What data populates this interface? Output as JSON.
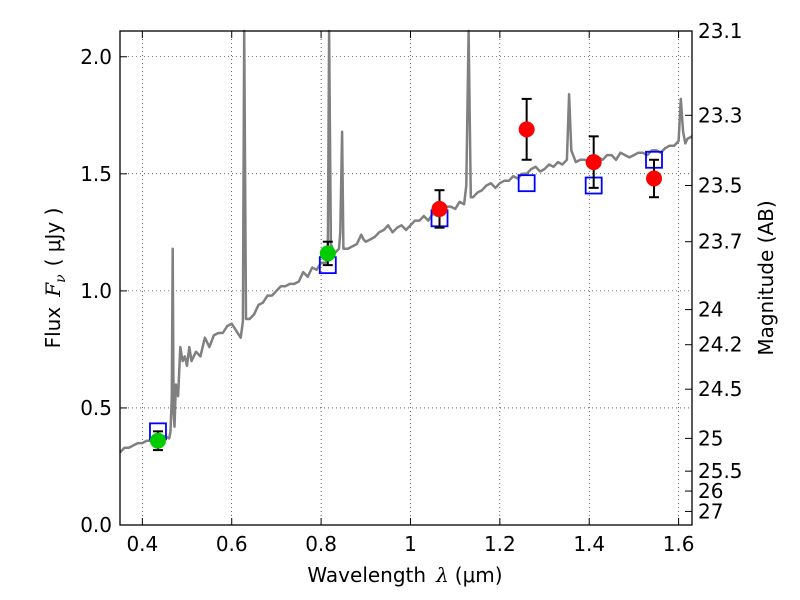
{
  "chart_data": {
    "type": "scatter",
    "title": "",
    "xlabel": "Wavelength",
    "xlabel_symbol": "λ",
    "xlabel_unit": "(μm)",
    "ylabel": "Flux",
    "ylabel_symbol": "F",
    "ylabel_sub": "ν",
    "ylabel_unit": "( μJy )",
    "y2label": "Magnitude (AB)",
    "xlim": [
      0.35,
      1.63
    ],
    "ylim": [
      0.0,
      2.11
    ],
    "grid": true,
    "grid_style": "dotted",
    "xticks": [
      0.4,
      0.6,
      0.8,
      1.0,
      1.2,
      1.4,
      1.6
    ],
    "xtick_labels": [
      "0.4",
      "0.6",
      "0.8",
      "1",
      "1.2",
      "1.4",
      "1.6"
    ],
    "yticks": [
      0.0,
      0.5,
      1.0,
      1.5,
      2.0
    ],
    "ytick_labels": [
      "0.0",
      "0.5",
      "1.0",
      "1.5",
      "2.0"
    ],
    "y2_ticks": [
      {
        "label": "23.1",
        "flux": 2.11
      },
      {
        "label": "23.3",
        "flux": 1.75
      },
      {
        "label": "23.5",
        "flux": 1.45
      },
      {
        "label": "23.7",
        "flux": 1.21
      },
      {
        "label": "24",
        "flux": 0.92
      },
      {
        "label": "24.2",
        "flux": 0.77
      },
      {
        "label": "24.5",
        "flux": 0.58
      },
      {
        "label": "25",
        "flux": 0.37
      },
      {
        "label": "25.5",
        "flux": 0.23
      },
      {
        "label": "26",
        "flux": 0.145
      },
      {
        "label": "27",
        "flux": 0.058
      }
    ],
    "series": [
      {
        "type": "line",
        "color": "#808080",
        "x": [
          0.35,
          0.36,
          0.37,
          0.38,
          0.39,
          0.4,
          0.41,
          0.42,
          0.43,
          0.44,
          0.45,
          0.46,
          0.463,
          0.466,
          0.468,
          0.47,
          0.472,
          0.475,
          0.48,
          0.485,
          0.49,
          0.495,
          0.5,
          0.505,
          0.51,
          0.52,
          0.53,
          0.54,
          0.55,
          0.56,
          0.57,
          0.58,
          0.59,
          0.6,
          0.61,
          0.62,
          0.625,
          0.628,
          0.632,
          0.64,
          0.65,
          0.66,
          0.67,
          0.68,
          0.69,
          0.7,
          0.71,
          0.72,
          0.73,
          0.74,
          0.75,
          0.76,
          0.77,
          0.78,
          0.79,
          0.8,
          0.81,
          0.815,
          0.818,
          0.822,
          0.83,
          0.84,
          0.843,
          0.847,
          0.85,
          0.86,
          0.87,
          0.88,
          0.89,
          0.895,
          0.9,
          0.91,
          0.92,
          0.93,
          0.94,
          0.95,
          0.96,
          0.97,
          0.98,
          0.99,
          1.0,
          1.01,
          1.02,
          1.03,
          1.04,
          1.05,
          1.06,
          1.07,
          1.08,
          1.09,
          1.1,
          1.11,
          1.12,
          1.125,
          1.13,
          1.135,
          1.14,
          1.15,
          1.16,
          1.17,
          1.18,
          1.19,
          1.2,
          1.21,
          1.22,
          1.23,
          1.24,
          1.25,
          1.26,
          1.27,
          1.28,
          1.29,
          1.3,
          1.31,
          1.32,
          1.33,
          1.34,
          1.35,
          1.355,
          1.36,
          1.37,
          1.38,
          1.39,
          1.4,
          1.41,
          1.42,
          1.43,
          1.44,
          1.45,
          1.46,
          1.47,
          1.48,
          1.49,
          1.5,
          1.51,
          1.52,
          1.53,
          1.54,
          1.55,
          1.56,
          1.57,
          1.58,
          1.59,
          1.6,
          1.605,
          1.61,
          1.615,
          1.62,
          1.63
        ],
        "y": [
          0.31,
          0.33,
          0.33,
          0.34,
          0.35,
          0.35,
          0.36,
          0.36,
          0.37,
          0.36,
          0.38,
          0.37,
          0.4,
          0.55,
          1.18,
          0.48,
          0.42,
          0.6,
          0.55,
          0.76,
          0.7,
          0.72,
          0.68,
          0.76,
          0.7,
          0.74,
          0.72,
          0.8,
          0.76,
          0.81,
          0.82,
          0.82,
          0.85,
          0.86,
          0.83,
          0.8,
          0.87,
          2.11,
          0.88,
          0.88,
          0.9,
          0.94,
          0.95,
          0.98,
          0.98,
          1.0,
          1.02,
          1.02,
          1.03,
          1.03,
          1.04,
          1.08,
          1.06,
          1.1,
          1.09,
          1.12,
          1.12,
          1.14,
          2.11,
          1.2,
          1.16,
          1.18,
          1.25,
          1.68,
          1.18,
          1.18,
          1.19,
          1.2,
          1.24,
          1.22,
          1.21,
          1.22,
          1.23,
          1.25,
          1.26,
          1.28,
          1.25,
          1.27,
          1.28,
          1.26,
          1.28,
          1.3,
          1.3,
          1.32,
          1.3,
          1.33,
          1.32,
          1.34,
          1.36,
          1.36,
          1.35,
          1.38,
          1.37,
          1.45,
          2.11,
          1.4,
          1.4,
          1.42,
          1.43,
          1.45,
          1.46,
          1.44,
          1.46,
          1.47,
          1.47,
          1.49,
          1.48,
          1.5,
          1.5,
          1.52,
          1.53,
          1.51,
          1.52,
          1.54,
          1.53,
          1.55,
          1.54,
          1.56,
          1.84,
          1.6,
          1.55,
          1.56,
          1.56,
          1.55,
          1.57,
          1.57,
          1.56,
          1.58,
          1.58,
          1.56,
          1.59,
          1.58,
          1.57,
          1.58,
          1.59,
          1.59,
          1.58,
          1.6,
          1.6,
          1.59,
          1.61,
          1.62,
          1.62,
          1.64,
          1.82,
          1.68,
          1.63,
          1.65,
          1.66
        ]
      },
      {
        "type": "open_squares",
        "color": "#0000ff",
        "x": [
          0.435,
          0.815,
          1.065,
          1.26,
          1.41,
          1.545
        ],
        "y": [
          0.4,
          1.11,
          1.31,
          1.46,
          1.45,
          1.56
        ]
      },
      {
        "type": "points_errorbars",
        "color": "#00cc00",
        "x": [
          0.435,
          0.815
        ],
        "y": [
          0.36,
          1.16
        ],
        "yerr": [
          0.04,
          0.05
        ]
      },
      {
        "type": "points_errorbars",
        "color": "#ff0000",
        "x": [
          1.065,
          1.26,
          1.41,
          1.545
        ],
        "y": [
          1.35,
          1.69,
          1.55,
          1.48
        ],
        "yerr": [
          0.08,
          0.13,
          0.11,
          0.08
        ]
      }
    ]
  }
}
